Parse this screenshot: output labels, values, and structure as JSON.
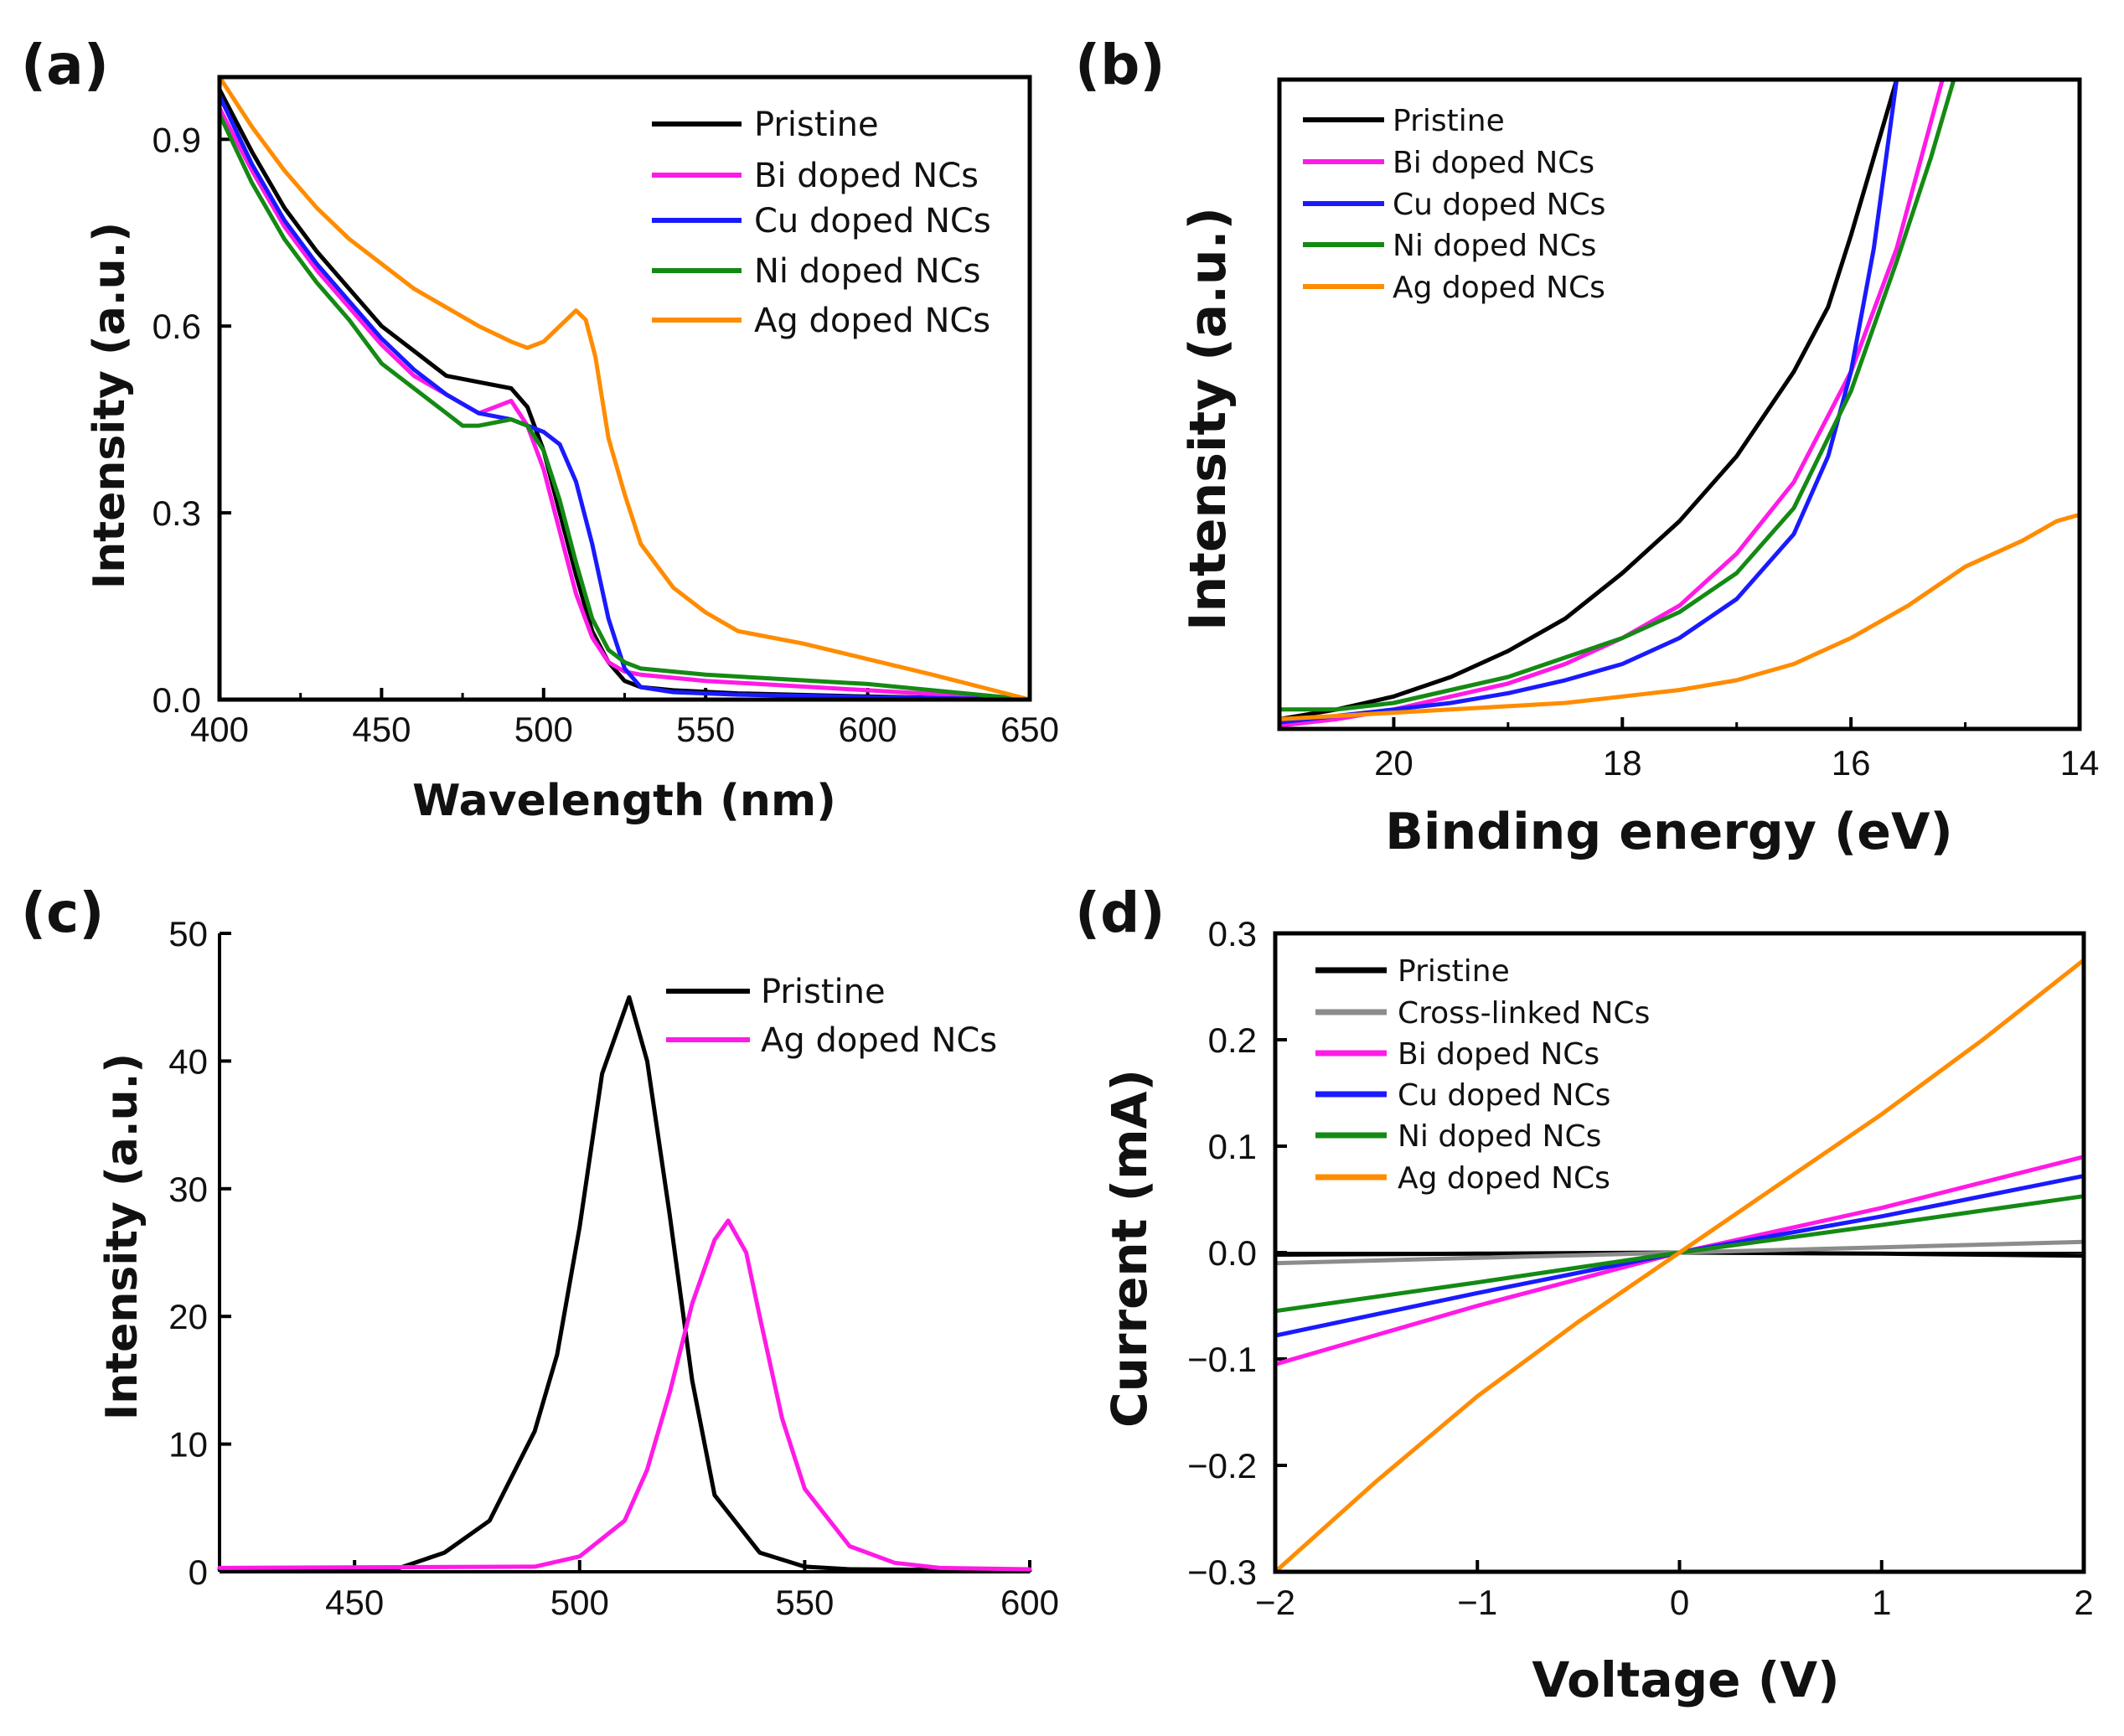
{
  "colors": {
    "pristine": "#000000",
    "cross_linked": "#8c8c8c",
    "bi": "#ff1ae6",
    "cu": "#1a1aff",
    "ni": "#148a14",
    "ag": "#ff8c00"
  },
  "chart_data": [
    {
      "id": "a",
      "panel_label": "(a)",
      "type": "line",
      "xlabel": "Wavelength (nm)",
      "ylabel": "Intensity (a.u.)",
      "xlim": [
        400,
        650
      ],
      "ylim": [
        0.0,
        1.0
      ],
      "xticks": [
        "400",
        "450",
        "500",
        "550",
        "600",
        "650"
      ],
      "yticks": [
        "0.0",
        "0.3",
        "0.6",
        "0.9"
      ],
      "legend_position": "top-right",
      "series": [
        {
          "name": "Pristine",
          "color_key": "pristine",
          "x": [
            400,
            410,
            420,
            430,
            440,
            450,
            460,
            470,
            480,
            490,
            495,
            500,
            505,
            510,
            515,
            520,
            525,
            530,
            540,
            560,
            600,
            650
          ],
          "y": [
            0.98,
            0.88,
            0.79,
            0.72,
            0.66,
            0.6,
            0.56,
            0.52,
            0.51,
            0.5,
            0.47,
            0.4,
            0.3,
            0.2,
            0.11,
            0.06,
            0.03,
            0.02,
            0.015,
            0.01,
            0.005,
            0.0
          ]
        },
        {
          "name": "Bi doped NCs",
          "color_key": "bi",
          "x": [
            400,
            410,
            420,
            430,
            440,
            450,
            460,
            470,
            480,
            485,
            490,
            495,
            500,
            505,
            510,
            515,
            520,
            525,
            530,
            550,
            600,
            650
          ],
          "y": [
            0.95,
            0.85,
            0.76,
            0.69,
            0.63,
            0.57,
            0.52,
            0.49,
            0.46,
            0.47,
            0.48,
            0.44,
            0.37,
            0.27,
            0.17,
            0.1,
            0.06,
            0.045,
            0.04,
            0.03,
            0.015,
            0.0
          ]
        },
        {
          "name": "Cu doped NCs",
          "color_key": "cu",
          "x": [
            400,
            410,
            420,
            430,
            440,
            450,
            460,
            470,
            480,
            490,
            495,
            500,
            505,
            510,
            515,
            520,
            525,
            530,
            540,
            560,
            600,
            650
          ],
          "y": [
            0.97,
            0.86,
            0.77,
            0.7,
            0.64,
            0.58,
            0.53,
            0.49,
            0.46,
            0.45,
            0.44,
            0.43,
            0.41,
            0.35,
            0.25,
            0.13,
            0.05,
            0.02,
            0.012,
            0.008,
            0.004,
            0.0
          ]
        },
        {
          "name": "Ni doped NCs",
          "color_key": "ni",
          "x": [
            400,
            410,
            420,
            430,
            440,
            450,
            460,
            470,
            475,
            480,
            490,
            495,
            500,
            505,
            510,
            515,
            520,
            525,
            530,
            550,
            600,
            650
          ],
          "y": [
            0.94,
            0.83,
            0.74,
            0.67,
            0.61,
            0.54,
            0.5,
            0.46,
            0.44,
            0.44,
            0.45,
            0.44,
            0.4,
            0.32,
            0.22,
            0.13,
            0.08,
            0.06,
            0.05,
            0.04,
            0.025,
            0.0
          ]
        },
        {
          "name": "Ag doped NCs",
          "color_key": "ag",
          "x": [
            400,
            410,
            420,
            430,
            440,
            450,
            460,
            470,
            480,
            490,
            495,
            500,
            505,
            510,
            513,
            516,
            520,
            525,
            530,
            540,
            550,
            560,
            580,
            600,
            620,
            650
          ],
          "y": [
            1.0,
            0.92,
            0.85,
            0.79,
            0.74,
            0.7,
            0.66,
            0.63,
            0.6,
            0.575,
            0.565,
            0.575,
            0.6,
            0.625,
            0.61,
            0.55,
            0.42,
            0.33,
            0.25,
            0.18,
            0.14,
            0.11,
            0.09,
            0.065,
            0.04,
            0.0
          ]
        }
      ]
    },
    {
      "id": "b",
      "panel_label": "(b)",
      "type": "line",
      "xlabel": "Binding energy (eV)",
      "ylabel": "Intensity (a.u.)",
      "xlim": [
        21,
        14
      ],
      "ylim": [
        0,
        100
      ],
      "xticks": [
        "20",
        "18",
        "16",
        "14"
      ],
      "yticks": [],
      "legend_position": "top-left",
      "series": [
        {
          "name": "Pristine",
          "color_key": "pristine",
          "x": [
            21,
            20.5,
            20,
            19.5,
            19,
            18.5,
            18,
            17.5,
            17,
            16.5,
            16.2,
            16,
            15.8,
            15.6
          ],
          "y": [
            1.5,
            3,
            5,
            8,
            12,
            17,
            24,
            32,
            42,
            55,
            65,
            76,
            88,
            100
          ]
        },
        {
          "name": "Bi doped NCs",
          "color_key": "bi",
          "x": [
            21,
            20.5,
            20,
            19.5,
            19,
            18.5,
            18,
            17.5,
            17,
            16.5,
            16,
            15.6,
            15.4,
            15.2
          ],
          "y": [
            0.5,
            1.5,
            3,
            5,
            7,
            10,
            14,
            19,
            27,
            38,
            55,
            74,
            87,
            100
          ]
        },
        {
          "name": "Cu doped NCs",
          "color_key": "cu",
          "x": [
            21,
            20.5,
            20,
            19.5,
            19,
            18.5,
            18,
            17.5,
            17,
            16.5,
            16.2,
            16,
            15.8,
            15.6
          ],
          "y": [
            1,
            2,
            3,
            4,
            5.5,
            7.5,
            10,
            14,
            20,
            30,
            42,
            55,
            74,
            100
          ]
        },
        {
          "name": "Ni doped NCs",
          "color_key": "ni",
          "x": [
            21,
            20.5,
            20,
            19.5,
            19,
            18.5,
            18,
            17.5,
            17,
            16.5,
            16,
            15.6,
            15.3,
            15.1
          ],
          "y": [
            3,
            3,
            4,
            6,
            8,
            11,
            14,
            18,
            24,
            34,
            52,
            72,
            88,
            100
          ]
        },
        {
          "name": "Ag doped NCs",
          "color_key": "ag",
          "x": [
            21,
            20.5,
            20,
            19.5,
            19,
            18.5,
            18,
            17.5,
            17,
            16.5,
            16,
            15.5,
            15,
            14.5,
            14.2,
            14
          ],
          "y": [
            1.5,
            2,
            2.5,
            3,
            3.5,
            4,
            5,
            6,
            7.5,
            10,
            14,
            19,
            25,
            29,
            32,
            33
          ]
        }
      ]
    },
    {
      "id": "c",
      "panel_label": "(c)",
      "type": "line",
      "xlabel": "",
      "ylabel": "Intensity (a.u.)",
      "xlim": [
        420,
        600
      ],
      "ylim": [
        0,
        50
      ],
      "xticks": [
        "450",
        "500",
        "550",
        "600"
      ],
      "yticks": [
        "0",
        "10",
        "20",
        "30",
        "40",
        "50"
      ],
      "legend_position": "top-right",
      "series": [
        {
          "name": "Pristine",
          "color_key": "pristine",
          "x": [
            420,
            460,
            470,
            480,
            490,
            495,
            500,
            505,
            511,
            515,
            520,
            525,
            530,
            540,
            550,
            560,
            600
          ],
          "y": [
            0.2,
            0.3,
            1.5,
            4,
            11,
            17,
            27,
            39,
            45,
            40,
            28,
            15,
            6,
            1.5,
            0.4,
            0.2,
            0.1
          ]
        },
        {
          "name": "Ag doped NCs",
          "color_key": "bi",
          "x": [
            420,
            490,
            500,
            510,
            515,
            520,
            525,
            530,
            533,
            537,
            540,
            545,
            550,
            560,
            570,
            580,
            600
          ],
          "y": [
            0.3,
            0.4,
            1.2,
            4,
            8,
            14,
            21,
            26,
            27.5,
            25,
            20,
            12,
            6.5,
            2,
            0.7,
            0.3,
            0.2
          ]
        }
      ]
    },
    {
      "id": "d",
      "panel_label": "(d)",
      "type": "line",
      "xlabel": "Voltage (V)",
      "ylabel": "Current (mA)",
      "xlim": [
        -2,
        2
      ],
      "ylim": [
        -0.3,
        0.3
      ],
      "xticks": [
        "−2",
        "−1",
        "0",
        "1",
        "2"
      ],
      "yticks": [
        "0.3",
        "0.2",
        "0.1",
        "0.0",
        "−0.1",
        "−0.2",
        "−0.3"
      ],
      "legend_position": "top-left",
      "series": [
        {
          "name": "Pristine",
          "color_key": "pristine",
          "x": [
            -2,
            -1,
            0,
            1,
            2
          ],
          "y": [
            -0.002,
            -0.001,
            0.0,
            -0.001,
            -0.003
          ]
        },
        {
          "name": "Cross-linked NCs",
          "color_key": "cross_linked",
          "x": [
            -2,
            -1,
            0,
            1,
            2
          ],
          "y": [
            -0.01,
            -0.005,
            0.0,
            0.005,
            0.01
          ]
        },
        {
          "name": "Bi doped NCs",
          "color_key": "bi",
          "x": [
            -2,
            -1,
            0,
            1,
            2
          ],
          "y": [
            -0.105,
            -0.05,
            0.0,
            0.042,
            0.09
          ]
        },
        {
          "name": "Cu doped NCs",
          "color_key": "cu",
          "x": [
            -2,
            -1,
            0,
            1,
            2
          ],
          "y": [
            -0.078,
            -0.038,
            0.0,
            0.034,
            0.072
          ]
        },
        {
          "name": "Ni doped NCs",
          "color_key": "ni",
          "x": [
            -2,
            -1,
            0,
            1,
            2
          ],
          "y": [
            -0.055,
            -0.028,
            0.0,
            0.026,
            0.053
          ]
        },
        {
          "name": "Ag doped NCs",
          "color_key": "ag",
          "x": [
            -2,
            -1.5,
            -1,
            -0.5,
            0,
            0.5,
            1,
            1.5,
            2
          ],
          "y": [
            -0.3,
            -0.215,
            -0.135,
            -0.065,
            0.0,
            0.065,
            0.13,
            0.2,
            0.275
          ]
        }
      ]
    }
  ]
}
